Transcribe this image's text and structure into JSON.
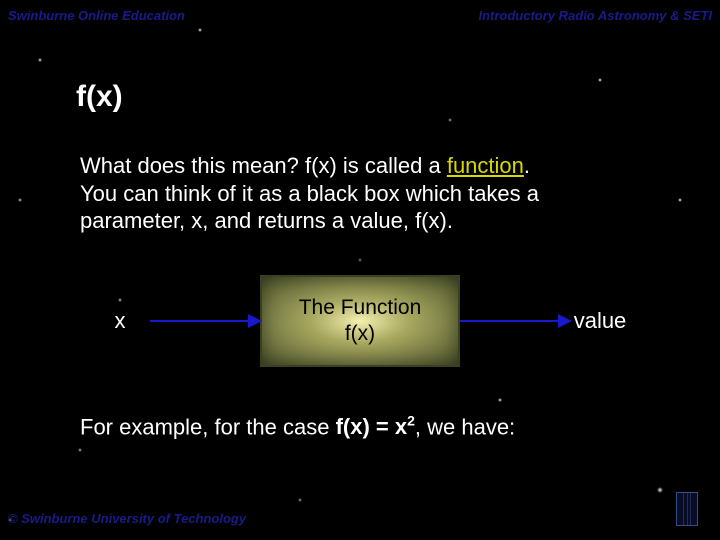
{
  "header": {
    "left": "Swinburne Online Education",
    "right": "Introductory Radio Astronomy & SETI"
  },
  "footer": "© Swinburne University of Technology",
  "slide": {
    "title": "f(x)",
    "para1_prefix": "What does this mean? f(x) is called a ",
    "para1_keyword": "function",
    "para1_suffix": ".",
    "para2": "You can think of it as a black box which takes a parameter, x, and returns a value, f(x).",
    "diagram": {
      "input_label": "x",
      "box_line1": "The Function",
      "box_line2": "f(x)",
      "output_label": "value",
      "arrow_color": "#1818cc"
    },
    "example_prefix": "For example, for the case ",
    "example_bold": "f(x) = x",
    "example_exp": "2",
    "example_suffix": ", we have:"
  },
  "colors": {
    "header_text": "#1a1a8a",
    "keyword": "#d8d800",
    "background": "#000000"
  }
}
